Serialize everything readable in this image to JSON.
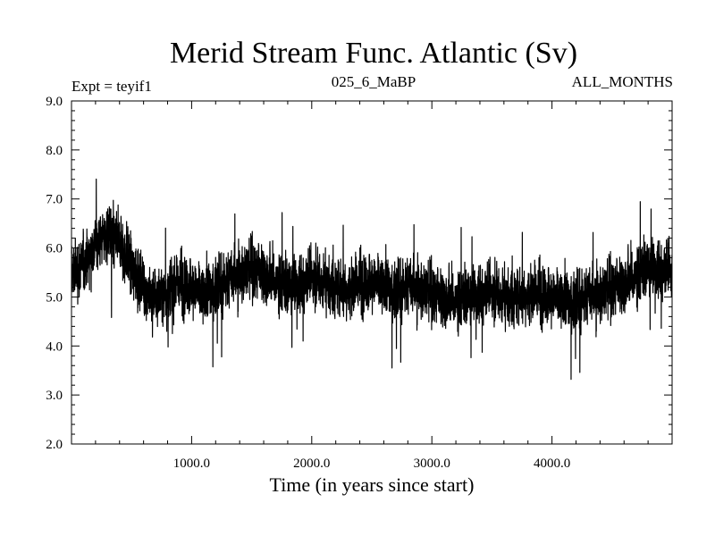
{
  "chart_data": {
    "type": "line",
    "title": "Merid Stream Func. Atlantic (Sv)",
    "subtitle_left": "Expt = teyif1",
    "subtitle_center": "025_6_MaBP",
    "subtitle_right": "ALL_MONTHS",
    "xlabel": "Time (in years since start)",
    "ylabel": "",
    "xlim": [
      0,
      5000
    ],
    "ylim": [
      2.0,
      9.0
    ],
    "x_ticks": [
      1000,
      2000,
      3000,
      4000
    ],
    "x_tick_labels": [
      "1000.0",
      "2000.0",
      "3000.0",
      "4000.0"
    ],
    "y_ticks": [
      2,
      3,
      4,
      5,
      6,
      7,
      8,
      9
    ],
    "y_tick_labels": [
      "2.0",
      "3.0",
      "4.0",
      "5.0",
      "6.0",
      "7.0",
      "8.0",
      "9.0"
    ],
    "grid": false,
    "legend": "none",
    "line_color": "#000000",
    "series": [
      {
        "x": [
          0,
          100,
          200,
          300,
          400,
          500,
          600,
          700,
          800,
          900,
          1000,
          1100,
          1200,
          1300,
          1400,
          1500,
          1600,
          1700,
          1800,
          1900,
          2000,
          2100,
          2200,
          2300,
          2400,
          2500,
          2600,
          2700,
          2800,
          2900,
          3000,
          3100,
          3200,
          3300,
          3400,
          3500,
          3600,
          3700,
          3800,
          3900,
          4000,
          4100,
          4200,
          4300,
          4400,
          4500,
          4600,
          4700,
          4800,
          4900,
          5000
        ],
        "values": [
          5.5,
          5.7,
          6.1,
          6.3,
          6.1,
          5.6,
          5.2,
          5.0,
          5.1,
          5.3,
          5.2,
          5.0,
          5.2,
          5.3,
          5.5,
          5.6,
          5.5,
          5.3,
          5.2,
          5.3,
          5.4,
          5.3,
          5.2,
          5.2,
          5.3,
          5.3,
          5.2,
          5.1,
          5.2,
          5.2,
          5.1,
          5.0,
          4.9,
          5.0,
          5.1,
          5.1,
          5.0,
          5.0,
          5.1,
          5.1,
          5.0,
          4.9,
          4.9,
          5.0,
          5.1,
          5.2,
          5.3,
          5.4,
          5.6,
          5.6,
          5.5
        ],
        "noise_min": 2.6,
        "noise_max": 8.1
      }
    ]
  }
}
